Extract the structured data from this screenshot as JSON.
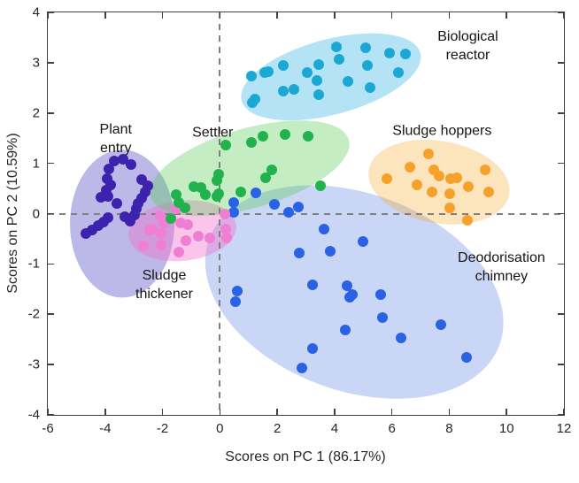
{
  "chart_data": {
    "type": "scatter",
    "title": "",
    "xlabel": "Scores on PC 1 (86.17%)",
    "ylabel": "Scores on PC 2 (10.59%)",
    "xlim": [
      -6,
      12
    ],
    "ylim": [
      -4,
      4
    ],
    "xticks": [
      -6,
      -4,
      -2,
      0,
      2,
      4,
      6,
      8,
      10,
      12
    ],
    "yticks": [
      -4,
      -3,
      -2,
      -1,
      0,
      1,
      2,
      3,
      4
    ],
    "grid": false,
    "zero_lines": {
      "vertical_at_x": 0,
      "horizontal_at_y": 0,
      "style": "dashed",
      "color": "#7f7f7f"
    },
    "frame_color": "#3f3f3f",
    "series": [
      {
        "name": "deodorisation-chimney",
        "label": {
          "lines": [
            "Deodorisation",
            "chimney"
          ],
          "x": 9.82,
          "y": -1.07
        },
        "point_color": "#2a62e5",
        "ellipse": {
          "cx": 4.68,
          "cy": -1.56,
          "rx": 5.38,
          "ry": 1.96,
          "rot_deg": 20,
          "fill_rgba": "rgba(91,127,224,0.32)"
        },
        "points": [
          [
            0.47,
            0.22
          ],
          [
            0.47,
            0.02
          ],
          [
            1.25,
            0.42
          ],
          [
            1.91,
            0.19
          ],
          [
            2.4,
            0.02
          ],
          [
            2.73,
            0.13
          ],
          [
            3.62,
            -0.31
          ],
          [
            0.6,
            -1.54
          ],
          [
            0.55,
            -1.75
          ],
          [
            2.78,
            -0.78
          ],
          [
            3.86,
            -0.75
          ],
          [
            5.0,
            -0.56
          ],
          [
            3.23,
            -1.42
          ],
          [
            4.44,
            -1.43
          ],
          [
            4.52,
            -1.67
          ],
          [
            4.63,
            -1.6
          ],
          [
            5.61,
            -1.61
          ],
          [
            5.68,
            -2.06
          ],
          [
            4.38,
            -2.32
          ],
          [
            6.32,
            -2.47
          ],
          [
            7.7,
            -2.21
          ],
          [
            3.24,
            -2.68
          ],
          [
            2.87,
            -3.06
          ],
          [
            8.6,
            -2.86
          ]
        ]
      },
      {
        "name": "plant-entry",
        "label": {
          "lines": [
            "Plant",
            "entry"
          ],
          "x": -3.63,
          "y": 1.49
        },
        "point_color": "#3d22ad",
        "ellipse": {
          "cx": -3.4,
          "cy": -0.2,
          "rx": 1.82,
          "ry": 1.47,
          "rot_deg": 0,
          "fill_rgba": "rgba(122,114,208,0.50)"
        },
        "points": [
          [
            -3.68,
            1.04
          ],
          [
            -3.37,
            1.08
          ],
          [
            -3.1,
            0.98
          ],
          [
            -3.86,
            0.88
          ],
          [
            -3.94,
            0.69
          ],
          [
            -3.8,
            0.58
          ],
          [
            -3.96,
            0.47
          ],
          [
            -4.14,
            0.32
          ],
          [
            -3.89,
            0.34
          ],
          [
            -3.58,
            0.21
          ],
          [
            -2.73,
            0.67
          ],
          [
            -2.5,
            0.56
          ],
          [
            -2.6,
            0.43
          ],
          [
            -2.73,
            0.31
          ],
          [
            -2.86,
            0.21
          ],
          [
            -2.91,
            0.09
          ],
          [
            -2.98,
            -0.02
          ],
          [
            -3.12,
            -0.15
          ],
          [
            -3.32,
            -0.07
          ],
          [
            -3.89,
            -0.08
          ],
          [
            -4.04,
            -0.16
          ],
          [
            -4.25,
            -0.23
          ],
          [
            -4.45,
            -0.32
          ],
          [
            -4.66,
            -0.4
          ]
        ]
      },
      {
        "name": "sludge-thickener",
        "label": {
          "lines": [
            "Sludge",
            "thickener"
          ],
          "x": -1.94,
          "y": -1.42
        },
        "point_color": "#ef7fd4",
        "ellipse": {
          "cx": -1.32,
          "cy": -0.35,
          "rx": 1.88,
          "ry": 0.6,
          "rot_deg": -6,
          "fill_rgba": "rgba(240,110,202,0.40)"
        },
        "points": [
          [
            -1.53,
            0.1
          ],
          [
            -2.09,
            -0.04
          ],
          [
            -1.94,
            -0.19
          ],
          [
            -1.37,
            -0.19
          ],
          [
            -1.12,
            -0.22
          ],
          [
            -2.45,
            -0.33
          ],
          [
            -2.35,
            -0.3
          ],
          [
            -2.04,
            -0.39
          ],
          [
            -2.66,
            -0.65
          ],
          [
            -2.04,
            -0.63
          ],
          [
            -1.42,
            -0.77
          ],
          [
            -1.17,
            -0.54
          ],
          [
            -0.76,
            -0.45
          ],
          [
            -0.35,
            -0.48
          ],
          [
            0.16,
            0.0
          ],
          [
            0.2,
            -0.3
          ],
          [
            0.25,
            -0.48
          ]
        ]
      },
      {
        "name": "settler",
        "label": {
          "lines": [
            "Settler"
          ],
          "x": -0.25,
          "y": 1.61
        },
        "point_color": "#21b24e",
        "ellipse": {
          "cx": 1.05,
          "cy": 0.9,
          "rx": 3.6,
          "ry": 0.79,
          "rot_deg": -16,
          "fill_rgba": "rgba(87,204,87,0.35)"
        },
        "points": [
          [
            0.22,
            1.36
          ],
          [
            1.09,
            1.42
          ],
          [
            1.5,
            1.53
          ],
          [
            2.27,
            1.58
          ],
          [
            3.09,
            1.53
          ],
          [
            -0.04,
            0.78
          ],
          [
            -0.09,
            0.66
          ],
          [
            1.81,
            0.87
          ],
          [
            1.6,
            0.72
          ],
          [
            3.5,
            0.55
          ],
          [
            -0.91,
            0.54
          ],
          [
            -0.66,
            0.51
          ],
          [
            -0.5,
            0.37
          ],
          [
            -0.09,
            0.34
          ],
          [
            -1.53,
            0.37
          ],
          [
            -1.42,
            0.22
          ],
          [
            -0.04,
            0.4
          ],
          [
            0.73,
            0.43
          ],
          [
            -1.22,
            0.11
          ],
          [
            -1.7,
            -0.1
          ]
        ]
      },
      {
        "name": "biological-reactor",
        "label": {
          "lines": [
            "Biological",
            "reactor"
          ],
          "x": 8.65,
          "y": 3.33
        },
        "point_color": "#1ba8d5",
        "ellipse": {
          "cx": 3.88,
          "cy": 2.72,
          "rx": 3.23,
          "ry": 0.75,
          "rot_deg": -15,
          "fill_rgba": "rgba(69,184,232,0.40)"
        },
        "points": [
          [
            1.09,
            2.74
          ],
          [
            1.14,
            2.21
          ],
          [
            1.24,
            2.27
          ],
          [
            1.55,
            2.8
          ],
          [
            1.7,
            2.82
          ],
          [
            2.22,
            2.94
          ],
          [
            2.22,
            2.44
          ],
          [
            2.58,
            2.47
          ],
          [
            3.04,
            2.8
          ],
          [
            3.45,
            2.97
          ],
          [
            3.4,
            2.65
          ],
          [
            3.45,
            2.36
          ],
          [
            4.06,
            3.32
          ],
          [
            4.16,
            3.06
          ],
          [
            4.47,
            2.62
          ],
          [
            5.09,
            3.29
          ],
          [
            5.14,
            2.94
          ],
          [
            5.24,
            2.5
          ],
          [
            5.91,
            3.2
          ],
          [
            6.47,
            3.18
          ],
          [
            6.22,
            2.8
          ]
        ]
      },
      {
        "name": "sludge-hoppers",
        "label": {
          "lines": [
            "Sludge hoppers"
          ],
          "x": 7.75,
          "y": 1.65
        },
        "point_color": "#f5a12b",
        "ellipse": {
          "cx": 7.66,
          "cy": 0.63,
          "rx": 2.49,
          "ry": 0.82,
          "rot_deg": 10,
          "fill_rgba": "rgba(245,166,35,0.30)"
        },
        "points": [
          [
            5.81,
            0.69
          ],
          [
            6.63,
            0.92
          ],
          [
            7.29,
            1.19
          ],
          [
            7.45,
            0.87
          ],
          [
            7.65,
            0.75
          ],
          [
            6.88,
            0.57
          ],
          [
            7.39,
            0.43
          ],
          [
            8.06,
            0.69
          ],
          [
            8.26,
            0.72
          ],
          [
            8.01,
            0.4
          ],
          [
            8.68,
            0.54
          ],
          [
            9.24,
            0.87
          ],
          [
            9.39,
            0.43
          ],
          [
            8.01,
            0.11
          ],
          [
            8.62,
            -0.13
          ]
        ]
      }
    ]
  }
}
